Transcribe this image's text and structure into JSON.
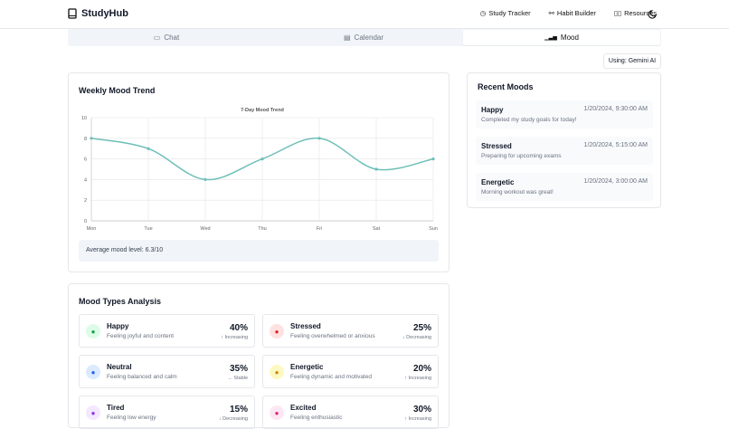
{
  "app": {
    "title": "StudyHub"
  },
  "nav": [
    "Study Tracker",
    "Habit Builder",
    "Resources"
  ],
  "tabs": [
    {
      "label": "Chat",
      "icon": "chat-icon"
    },
    {
      "label": "Calendar",
      "icon": "calendar-icon"
    },
    {
      "label": "Mood",
      "icon": "bar-chart-icon",
      "active": true
    }
  ],
  "ai_badge": "Using: Gemini AI",
  "trend": {
    "title": "Weekly Mood Trend",
    "average": "Average mood level: 6.3/10"
  },
  "chart_data": {
    "type": "line",
    "title": "7-Day Mood Trend",
    "categories": [
      "Mon",
      "Tue",
      "Wed",
      "Thu",
      "Fri",
      "Sat",
      "Sun"
    ],
    "values": [
      8,
      7,
      4,
      6,
      8,
      5,
      6
    ],
    "ylim": [
      0,
      10
    ],
    "yticks": [
      0,
      2,
      4,
      6,
      8,
      10
    ],
    "grid": true,
    "color": "#6dbfb8"
  },
  "recent": {
    "title": "Recent Moods",
    "items": [
      {
        "mood": "Happy",
        "time": "1/20/2024, 9:30:00 AM",
        "note": "Completed my study goals for today!"
      },
      {
        "mood": "Stressed",
        "time": "1/20/2024, 5:15:00 AM",
        "note": "Preparing for upcoming exams"
      },
      {
        "mood": "Energetic",
        "time": "1/20/2024, 3:00:00 AM",
        "note": "Morning workout was great!"
      }
    ]
  },
  "analysis": {
    "title": "Mood Types Analysis",
    "items": [
      {
        "name": "Happy",
        "desc": "Feeling joyful and content",
        "pct": "40%",
        "trend": "↑ Increasing",
        "bg": "#dcfce7",
        "fg": "#16a34a",
        "icon": "smile-icon"
      },
      {
        "name": "Stressed",
        "desc": "Feeling overwhelmed or anxious",
        "pct": "25%",
        "trend": "↓ Decreasing",
        "bg": "#fee2e2",
        "fg": "#dc2626",
        "icon": "alert-icon"
      },
      {
        "name": "Neutral",
        "desc": "Feeling balanced and calm",
        "pct": "35%",
        "trend": "→ Stable",
        "bg": "#dbeafe",
        "fg": "#2563eb",
        "icon": "activity-icon"
      },
      {
        "name": "Energetic",
        "desc": "Feeling dynamic and motivated",
        "pct": "20%",
        "trend": "↑ Increasing",
        "bg": "#fef9c3",
        "fg": "#ca8a04",
        "icon": "lightning-icon"
      },
      {
        "name": "Tired",
        "desc": "Feeling low energy",
        "pct": "15%",
        "trend": "↓ Decreasing",
        "bg": "#f3e8ff",
        "fg": "#9333ea",
        "icon": "frown-icon"
      },
      {
        "name": "Excited",
        "desc": "Feeling enthusiastic",
        "pct": "30%",
        "trend": "↑ Increasing",
        "bg": "#fce7f3",
        "fg": "#db2777",
        "icon": "heart-icon"
      }
    ]
  }
}
